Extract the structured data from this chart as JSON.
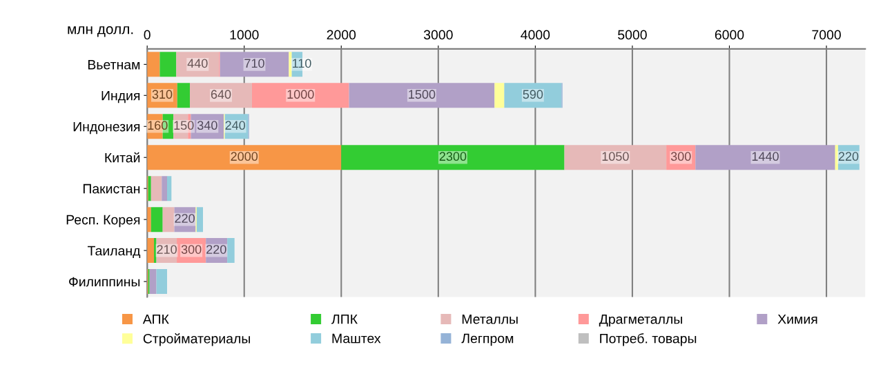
{
  "chart_data": {
    "type": "bar",
    "orientation": "horizontal",
    "stacked": true,
    "xlabel": "млн долл.",
    "categories": [
      "Вьетнам",
      "Индия",
      "Индонезия",
      "Китай",
      "Пакистан",
      "Респ. Корея",
      "Таиланд",
      "Филиппины"
    ],
    "series": [
      {
        "name": "АПК",
        "color": "#f79646",
        "values": [
          130,
          310,
          160,
          2000,
          10,
          40,
          70,
          10
        ],
        "value_labels": [
          null,
          "310",
          "160",
          "2000",
          null,
          null,
          null,
          null
        ]
      },
      {
        "name": "ЛПК",
        "color": "#33cc33",
        "values": [
          170,
          130,
          110,
          2300,
          30,
          120,
          25,
          15
        ],
        "value_labels": [
          null,
          null,
          null,
          "2300",
          null,
          null,
          null,
          null
        ]
      },
      {
        "name": "Металлы",
        "color": "#e6b9b8",
        "values": [
          440,
          640,
          150,
          1050,
          110,
          120,
          210,
          null
        ],
        "value_labels": [
          "440",
          "640",
          "150",
          "1050",
          null,
          null,
          "210",
          null
        ]
      },
      {
        "name": "Драгметаллы",
        "color": "#ff9999",
        "values": [
          10,
          1000,
          30,
          300,
          0,
          0,
          300,
          0
        ],
        "value_labels": [
          null,
          "1000",
          null,
          "300",
          null,
          null,
          "300",
          null
        ]
      },
      {
        "name": "Химия",
        "color": "#b1a0c7",
        "values": [
          710,
          1500,
          340,
          1440,
          55,
          220,
          220,
          70
        ],
        "value_labels": [
          "710",
          "1500",
          "340",
          "1440",
          null,
          "220",
          "220",
          null
        ]
      },
      {
        "name": "Стройматериалы",
        "color": "#ffff99",
        "values": [
          30,
          100,
          10,
          30,
          0,
          10,
          0,
          0
        ],
        "value_labels": [
          null,
          null,
          null,
          null,
          null,
          null,
          null,
          null
        ]
      },
      {
        "name": "Маштех",
        "color": "#92cddc",
        "values": [
          110,
          590,
          240,
          220,
          45,
          65,
          75,
          110
        ],
        "value_labels": [
          "110",
          "590",
          "240",
          "220",
          null,
          null,
          null,
          null
        ]
      },
      {
        "name": "Легпром",
        "color": "#95b3d7",
        "values": [
          null,
          10,
          10,
          null,
          0,
          0,
          0,
          0
        ],
        "value_labels": [
          null,
          null,
          null,
          null,
          null,
          null,
          null,
          null
        ]
      },
      {
        "name": "Потреб. товары",
        "color": "#bfbfbf",
        "values": [
          null,
          null,
          null,
          null,
          0,
          null,
          0,
          0
        ],
        "value_labels": [
          null,
          null,
          null,
          null,
          null,
          null,
          null,
          null
        ]
      }
    ],
    "xlim": [
      0,
      7400
    ],
    "xticks": [
      0,
      1000,
      2000,
      3000,
      4000,
      5000,
      6000,
      7000
    ],
    "grid": "x",
    "legend": "bottom"
  }
}
